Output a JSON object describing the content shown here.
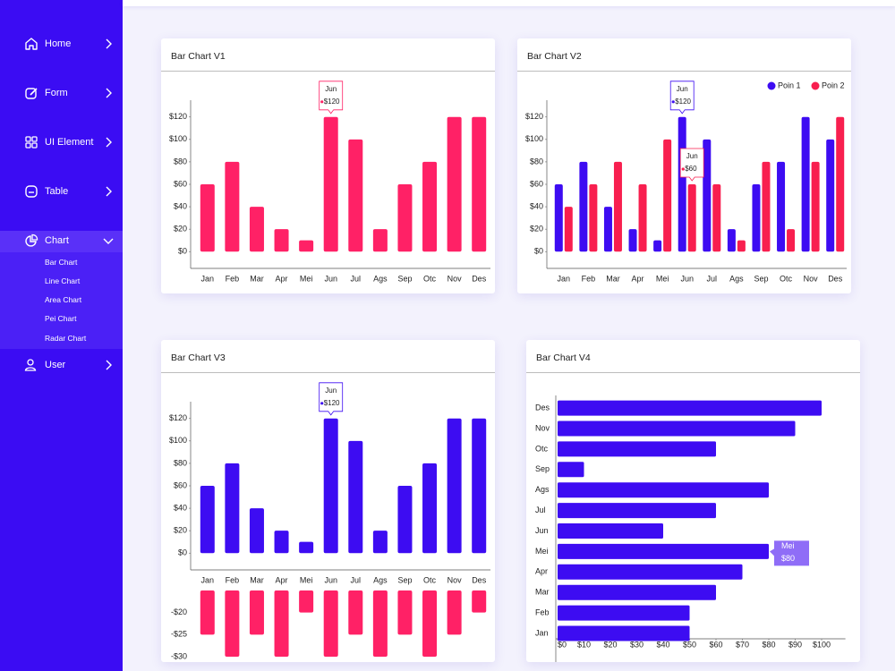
{
  "sidebar": {
    "items": [
      {
        "label": "Home"
      },
      {
        "label": "Form"
      },
      {
        "label": "UI Element"
      },
      {
        "label": "Table"
      },
      {
        "label": "Chart",
        "children": [
          "Bar Chart",
          "Line  Chart",
          "Area  Chart",
          "Pei  Chart",
          "Radar  Chart"
        ]
      },
      {
        "label": "User"
      }
    ]
  },
  "chart_data": [
    {
      "type": "bar",
      "title": "Bar Chart V1",
      "categories": [
        "Jan",
        "Feb",
        "Mar",
        "Apr",
        "Mei",
        "Jun",
        "Jul",
        "Ags",
        "Sep",
        "Otc",
        "Nov",
        "Des"
      ],
      "series": [
        {
          "color": "#ff2166",
          "values": [
            60,
            80,
            40,
            20,
            10,
            120,
            100,
            20,
            60,
            80,
            120,
            120
          ]
        }
      ],
      "ylim": [
        -15,
        135
      ],
      "yticks": [
        {
          "value": 0,
          "label": "$0"
        },
        {
          "value": 20,
          "label": "$20"
        },
        {
          "value": 40,
          "label": "$40"
        },
        {
          "value": 60,
          "label": "$60"
        },
        {
          "value": 80,
          "label": "$80"
        },
        {
          "value": 100,
          "label": "$100"
        },
        {
          "value": 120,
          "label": "$120"
        }
      ],
      "tooltips": [
        {
          "title": "Jun",
          "label": "$120"
        }
      ]
    },
    {
      "type": "bar",
      "title": "Bar Chart V2",
      "categories": [
        "Jan",
        "Feb",
        "Mar",
        "Apr",
        "Mei",
        "Jun",
        "Jul",
        "Ags",
        "Sep",
        "Otc",
        "Nov",
        "Des"
      ],
      "series": [
        {
          "name": "Poin 1",
          "color": "#3d0cf2",
          "values": [
            60,
            80,
            40,
            20,
            10,
            120,
            100,
            20,
            60,
            80,
            120,
            100
          ]
        },
        {
          "name": "Poin 2",
          "color": "#f81f4f",
          "values": [
            40,
            60,
            80,
            60,
            100,
            60,
            60,
            10,
            80,
            20,
            80,
            120
          ]
        }
      ],
      "ylim": [
        -15,
        135
      ],
      "yticks": [
        {
          "value": 0,
          "label": "$0"
        },
        {
          "value": 20,
          "label": "$20"
        },
        {
          "value": 40,
          "label": "$40"
        },
        {
          "value": 60,
          "label": "$60"
        },
        {
          "value": 80,
          "label": "$80"
        },
        {
          "value": 100,
          "label": "$100"
        },
        {
          "value": 120,
          "label": "$120"
        }
      ],
      "legend": "top-right",
      "tooltips": [
        {
          "title": "Jun",
          "label": "$120"
        },
        {
          "title": "Jun",
          "label": "$60"
        }
      ]
    },
    {
      "type": "bar",
      "title": "Bar Chart V3",
      "categories": [
        "Jan",
        "Feb",
        "Mar",
        "Apr",
        "Mei",
        "Jun",
        "Jul",
        "Ags",
        "Sep",
        "Otc",
        "Nov",
        "Des"
      ],
      "series": [
        {
          "color": "#3d0cf2",
          "values": [
            60,
            80,
            40,
            20,
            10,
            120,
            100,
            20,
            60,
            80,
            120,
            120
          ]
        },
        {
          "color": "#ff2166",
          "axis": "y2",
          "values": [
            -25,
            -30,
            -25,
            -30,
            -20,
            -30,
            -25,
            -30,
            -25,
            -30,
            -25,
            -20
          ]
        }
      ],
      "ylim": [
        -15,
        135
      ],
      "yticks": [
        {
          "value": 0,
          "label": "$0"
        },
        {
          "value": 20,
          "label": "$20"
        },
        {
          "value": 40,
          "label": "$40"
        },
        {
          "value": 60,
          "label": "$60"
        },
        {
          "value": 80,
          "label": "$80"
        },
        {
          "value": 100,
          "label": "$100"
        },
        {
          "value": 120,
          "label": "$120"
        }
      ],
      "y2lim": [
        -30,
        -15
      ],
      "y2ticks": [
        {
          "value": -20,
          "label": "-$20"
        },
        {
          "value": -25,
          "label": "-$25"
        },
        {
          "value": -30,
          "label": "-$30"
        }
      ],
      "tooltips": [
        {
          "title": "Jun",
          "label": "$120"
        }
      ]
    },
    {
      "type": "barh",
      "title": "Bar Chart V4",
      "categories": [
        "Jan",
        "Feb",
        "Mar",
        "Apr",
        "Mei",
        "Jun",
        "Jul",
        "Ags",
        "Sep",
        "Otc",
        "Nov",
        "Des"
      ],
      "series": [
        {
          "color": "#3d0cf2",
          "values": [
            50,
            50,
            60,
            70,
            80,
            40,
            60,
            80,
            10,
            60,
            90,
            100
          ]
        }
      ],
      "xlim": [
        0,
        108
      ],
      "xticks": [
        {
          "value": 0,
          "label": "$0"
        },
        {
          "value": 10,
          "label": "$10"
        },
        {
          "value": 20,
          "label": "$20"
        },
        {
          "value": 30,
          "label": "$30"
        },
        {
          "value": 40,
          "label": "$40"
        },
        {
          "value": 50,
          "label": "$50"
        },
        {
          "value": 60,
          "label": "$60"
        },
        {
          "value": 70,
          "label": "$70"
        },
        {
          "value": 80,
          "label": "$80"
        },
        {
          "value": 90,
          "label": "$90"
        },
        {
          "value": 100,
          "label": "$100"
        }
      ],
      "tooltips": [
        {
          "title": "Mei",
          "label": "$80"
        }
      ]
    }
  ]
}
